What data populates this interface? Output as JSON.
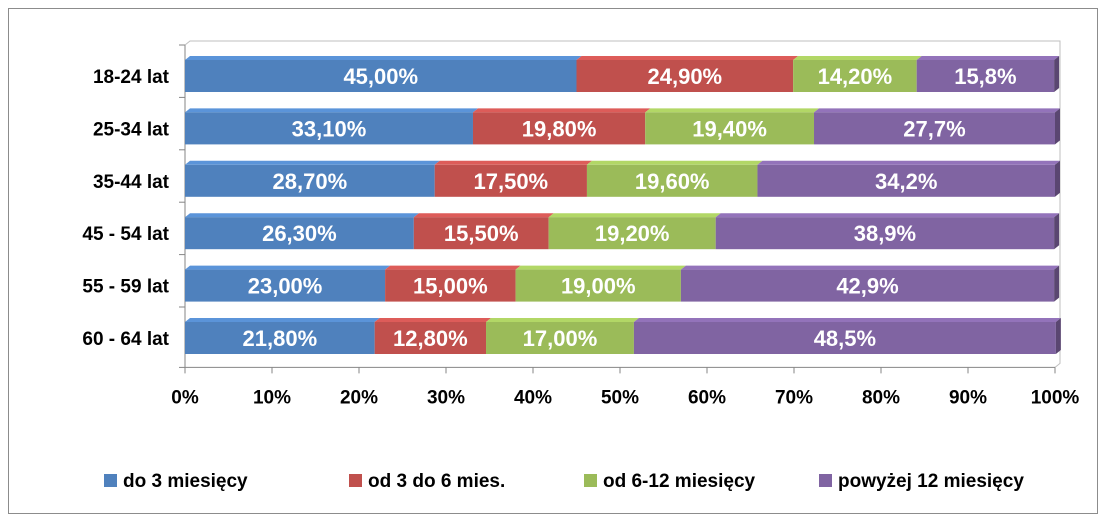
{
  "chart_data": {
    "type": "bar",
    "orientation": "horizontal",
    "stacked": true,
    "percent_stacked": true,
    "categories": [
      "18-24 lat",
      "25-34 lat",
      "35-44 lat",
      "45 - 54 lat",
      "55 - 59 lat",
      "60 - 64 lat"
    ],
    "series": [
      {
        "name": "do 3 miesięcy",
        "color": "#4f81bd",
        "values": [
          45.0,
          33.1,
          28.7,
          26.3,
          23.0,
          21.8
        ],
        "labels": [
          "45,00%",
          "33,10%",
          "28,70%",
          "26,30%",
          "23,00%",
          "21,80%"
        ]
      },
      {
        "name": "od 3 do 6 mies.",
        "color": "#c0504d",
        "values": [
          24.9,
          19.8,
          17.5,
          15.5,
          15.0,
          12.8
        ],
        "labels": [
          "24,90%",
          "19,80%",
          "17,50%",
          "15,50%",
          "15,00%",
          "12,80%"
        ]
      },
      {
        "name": "od 6-12 miesięcy",
        "color": "#9bbb59",
        "values": [
          14.2,
          19.4,
          19.6,
          19.2,
          19.0,
          17.0
        ],
        "labels": [
          "14,20%",
          "19,40%",
          "19,60%",
          "19,20%",
          "19,00%",
          "17,00%"
        ]
      },
      {
        "name": "powyżej 12 miesięcy",
        "color": "#8064a2",
        "values": [
          15.8,
          27.7,
          34.2,
          38.9,
          42.9,
          48.5
        ],
        "labels": [
          "15,8%",
          "27,7%",
          "34,2%",
          "38,9%",
          "42,9%",
          "48,5%"
        ]
      }
    ],
    "x_ticks": [
      "0%",
      "10%",
      "20%",
      "30%",
      "40%",
      "50%",
      "60%",
      "70%",
      "80%",
      "90%",
      "100%"
    ],
    "xlim": [
      0,
      100
    ],
    "grid": false,
    "legend": "bottom"
  }
}
